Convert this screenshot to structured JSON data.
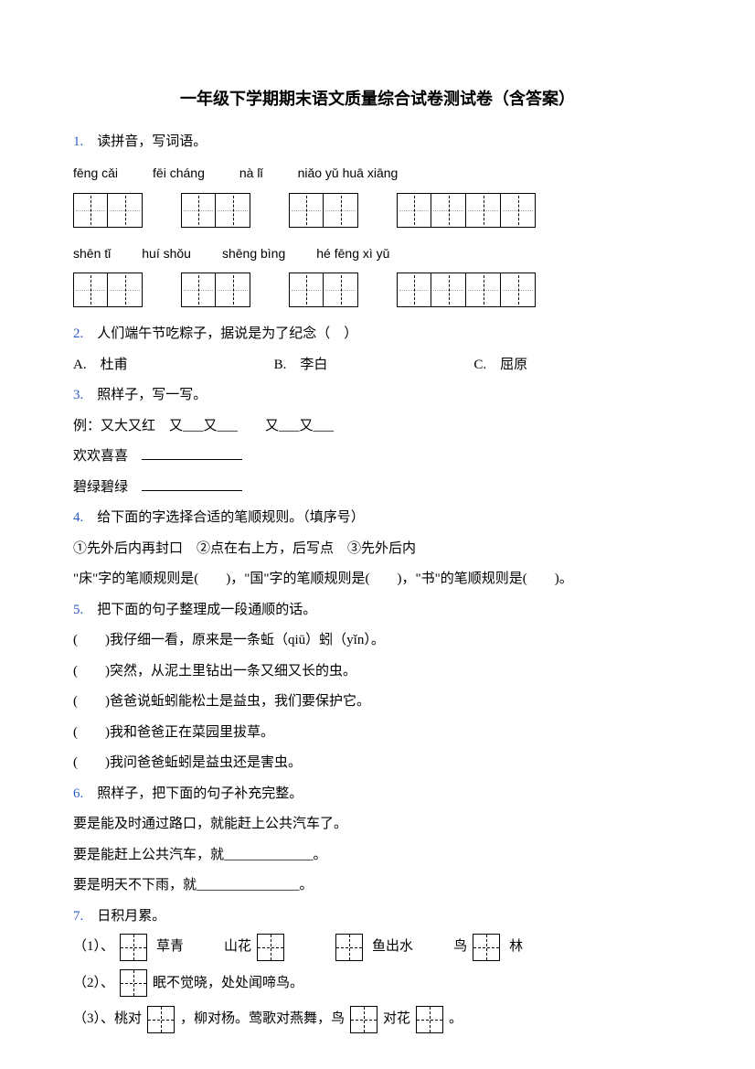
{
  "title": "一年级下学期期末语文质量综合试卷测试卷（含答案）",
  "q1": {
    "num": "1.",
    "prompt": "读拼音，写词语。",
    "pinyin_row1": [
      "fēng cǎi",
      "fēi cháng",
      "nà lǐ",
      "niǎo yǔ huā xiāng"
    ],
    "pinyin_row2": [
      "shēn tǐ",
      "huí shǒu",
      "shēng bìng",
      "hé fēng xì yǔ"
    ]
  },
  "q2": {
    "num": "2.",
    "prompt": "人们端午节吃粽子，据说是为了纪念（　）",
    "opts": [
      "A.　杜甫",
      "B.　李白",
      "C.　屈原"
    ]
  },
  "q3": {
    "num": "3.",
    "prompt": "照样子，写一写。",
    "example": "例：又大又红　又___又___　　又___又___",
    "l1": "欢欢喜喜　",
    "l2": "碧绿碧绿　"
  },
  "q4": {
    "num": "4.",
    "prompt": "给下面的字选择合适的笔顺规则。（填序号）",
    "rules": "①先外后内再封口　②点在右上方，后写点　③先外后内",
    "line": "\"床\"字的笔顺规则是(　　)，\"国\"字的笔顺规则是(　　)，\"书\"的笔顺规则是(　　)。"
  },
  "q5": {
    "num": "5.",
    "prompt": "把下面的句子整理成一段通顺的话。",
    "items": [
      "(　　)我仔细一看，原来是一条蚯（qiū）蚓（yǐn）。",
      "(　　)突然，从泥土里钻出一条又细又长的虫。",
      "(　　)爸爸说蚯蚓能松土是益虫，我们要保护它。",
      "(　　)我和爸爸正在菜园里拔草。",
      "(　　)我问爸爸蚯蚓是益虫还是害虫。"
    ]
  },
  "q6": {
    "num": "6.",
    "prompt": "照样子，把下面的句子补充完整。",
    "s1": "要是能及时通过路口，就能赶上公共汽车了。",
    "s2": "要是能赶上公共汽车，就_____________。",
    "s3": "要是明天不下雨，就_______________。"
  },
  "q7": {
    "num": "7.",
    "prompt": "日积月累。",
    "r1": {
      "idx": "（1）、",
      "a": "草青",
      "b": "山花",
      "c": "鱼出水",
      "d": "鸟",
      "e": "林"
    },
    "r2": {
      "idx": "（2）、",
      "t": "眠不觉晓，处处闻啼鸟。"
    },
    "r3": {
      "idx": "（3）、桃对",
      "a": "，柳对杨。莺歌对燕舞，鸟",
      "b": "对花",
      "c": "。"
    }
  }
}
